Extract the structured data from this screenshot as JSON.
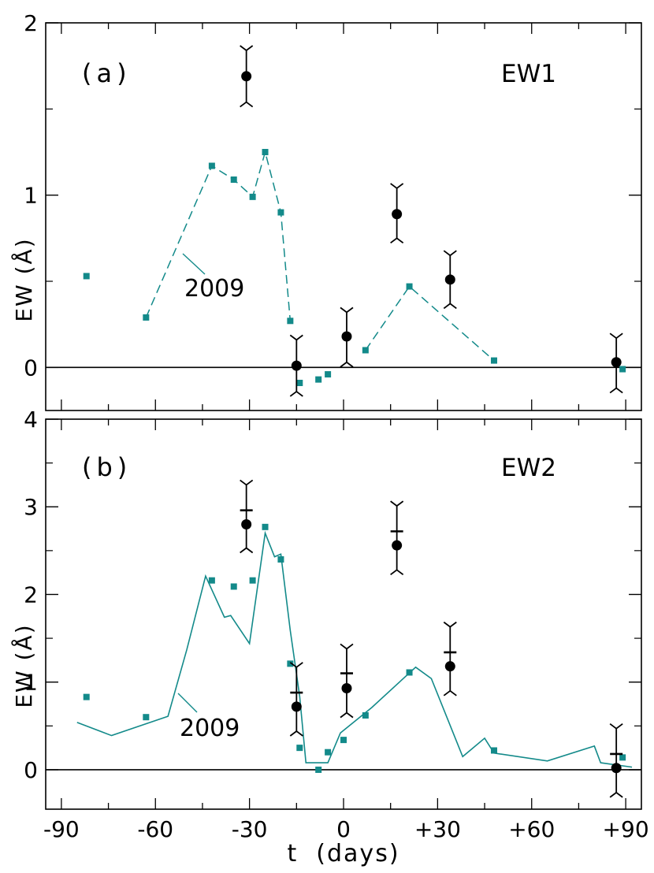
{
  "colors": {
    "series_2009": "#138a8a",
    "observed": "#000000",
    "axis": "#000000"
  },
  "shared_x": {
    "xlabel": "t  (days)",
    "xlim": [
      -95,
      95
    ],
    "xticks": [
      -90,
      -60,
      -30,
      0,
      30,
      60,
      90
    ],
    "xtick_labels": [
      "-90",
      "-60",
      "-30",
      "0",
      "+30",
      "+60",
      "+90"
    ]
  },
  "chart_data": [
    {
      "type": "scatter",
      "panel_label": "(a)",
      "title": "EW1",
      "ylabel": "EW  (Å)",
      "ylim": [
        -0.25,
        2.0
      ],
      "yticks": [
        0,
        1,
        2
      ],
      "ytick_labels": [
        "0",
        "1",
        "2"
      ],
      "zero_line": true,
      "annotation": "2009",
      "series": [
        {
          "name": "2009",
          "marker": "square",
          "points": [
            {
              "x": -82,
              "y": 0.53
            },
            {
              "x": -63,
              "y": 0.29
            },
            {
              "x": -42,
              "y": 1.17
            },
            {
              "x": -35,
              "y": 1.09
            },
            {
              "x": -29,
              "y": 0.99
            },
            {
              "x": -25,
              "y": 1.25
            },
            {
              "x": -20,
              "y": 0.9
            },
            {
              "x": -17,
              "y": 0.27
            },
            {
              "x": -14,
              "y": -0.09
            },
            {
              "x": -8,
              "y": -0.07
            },
            {
              "x": -5,
              "y": -0.04
            },
            {
              "x": 7,
              "y": 0.1
            },
            {
              "x": 21,
              "y": 0.47
            },
            {
              "x": 48,
              "y": 0.04
            },
            {
              "x": 89,
              "y": -0.01
            }
          ],
          "dashed_segments": [
            [
              {
                "x": -63,
                "y": 0.29
              },
              {
                "x": -42,
                "y": 1.17
              },
              {
                "x": -35,
                "y": 1.09
              },
              {
                "x": -29,
                "y": 0.99
              },
              {
                "x": -25,
                "y": 1.25
              },
              {
                "x": -20,
                "y": 0.9
              },
              {
                "x": -17,
                "y": 0.27
              }
            ],
            [
              {
                "x": 7,
                "y": 0.1
              },
              {
                "x": 21,
                "y": 0.47
              },
              {
                "x": 48,
                "y": 0.04
              }
            ]
          ]
        },
        {
          "name": "observed",
          "marker": "circle",
          "points": [
            {
              "x": -31,
              "y": 1.69,
              "ylo": 1.54,
              "yhi": 1.84
            },
            {
              "x": -15,
              "y": 0.01,
              "ylo": -0.14,
              "yhi": 0.16
            },
            {
              "x": 1,
              "y": 0.18,
              "ylo": 0.03,
              "yhi": 0.32
            },
            {
              "x": 17,
              "y": 0.89,
              "ylo": 0.75,
              "yhi": 1.04
            },
            {
              "x": 34,
              "y": 0.51,
              "ylo": 0.37,
              "yhi": 0.65
            },
            {
              "x": 87,
              "y": 0.03,
              "ylo": -0.12,
              "yhi": 0.17
            }
          ]
        }
      ]
    },
    {
      "type": "scatter",
      "panel_label": "(b)",
      "title": "EW2",
      "ylabel": "EW  (Å)",
      "ylim": [
        -0.45,
        4.0
      ],
      "yticks": [
        0,
        1,
        2,
        3,
        4
      ],
      "ytick_labels": [
        "0",
        "1",
        "2",
        "3",
        "4"
      ],
      "zero_line": true,
      "annotation": "2009",
      "series": [
        {
          "name": "2009",
          "marker": "square",
          "points": [
            {
              "x": -82,
              "y": 0.83
            },
            {
              "x": -63,
              "y": 0.6
            },
            {
              "x": -42,
              "y": 2.16
            },
            {
              "x": -35,
              "y": 2.09
            },
            {
              "x": -29,
              "y": 2.16
            },
            {
              "x": -25,
              "y": 2.77
            },
            {
              "x": -20,
              "y": 2.4
            },
            {
              "x": -17,
              "y": 1.21
            },
            {
              "x": -14,
              "y": 0.25
            },
            {
              "x": -8,
              "y": 0.0
            },
            {
              "x": -5,
              "y": 0.2
            },
            {
              "x": 0,
              "y": 0.34
            },
            {
              "x": 7,
              "y": 0.62
            },
            {
              "x": 21,
              "y": 1.11
            },
            {
              "x": 48,
              "y": 0.22
            },
            {
              "x": 89,
              "y": 0.14
            }
          ],
          "line": [
            {
              "x": -85,
              "y": 0.54
            },
            {
              "x": -74,
              "y": 0.39
            },
            {
              "x": -56,
              "y": 0.61
            },
            {
              "x": -50,
              "y": 1.37
            },
            {
              "x": -44,
              "y": 2.21
            },
            {
              "x": -38,
              "y": 1.74
            },
            {
              "x": -36,
              "y": 1.76
            },
            {
              "x": -30,
              "y": 1.44
            },
            {
              "x": -25,
              "y": 2.7
            },
            {
              "x": -22,
              "y": 2.43
            },
            {
              "x": -20,
              "y": 2.46
            },
            {
              "x": -17,
              "y": 1.59
            },
            {
              "x": -14,
              "y": 0.84
            },
            {
              "x": -12,
              "y": 0.08
            },
            {
              "x": -5,
              "y": 0.08
            },
            {
              "x": -1,
              "y": 0.42
            },
            {
              "x": 9,
              "y": 0.71
            },
            {
              "x": 23,
              "y": 1.17
            },
            {
              "x": 28,
              "y": 1.04
            },
            {
              "x": 38,
              "y": 0.15
            },
            {
              "x": 45,
              "y": 0.36
            },
            {
              "x": 48,
              "y": 0.19
            },
            {
              "x": 65,
              "y": 0.1
            },
            {
              "x": 80,
              "y": 0.27
            },
            {
              "x": 82,
              "y": 0.08
            },
            {
              "x": 92,
              "y": 0.03
            }
          ]
        },
        {
          "name": "observed",
          "marker": "circle",
          "points": [
            {
              "x": -31,
              "y": 2.8,
              "ylo": 2.53,
              "yhi": 3.25,
              "mark": 2.96
            },
            {
              "x": -15,
              "y": 0.72,
              "ylo": 0.44,
              "yhi": 1.17,
              "mark": 0.88
            },
            {
              "x": 1,
              "y": 0.93,
              "ylo": 0.65,
              "yhi": 1.38,
              "mark": 1.1
            },
            {
              "x": 17,
              "y": 2.56,
              "ylo": 2.28,
              "yhi": 3.01,
              "mark": 2.72
            },
            {
              "x": 34,
              "y": 1.18,
              "ylo": 0.9,
              "yhi": 1.63,
              "mark": 1.34
            },
            {
              "x": 87,
              "y": 0.02,
              "ylo": -0.26,
              "yhi": 0.47,
              "mark": 0.18
            }
          ]
        }
      ]
    }
  ]
}
